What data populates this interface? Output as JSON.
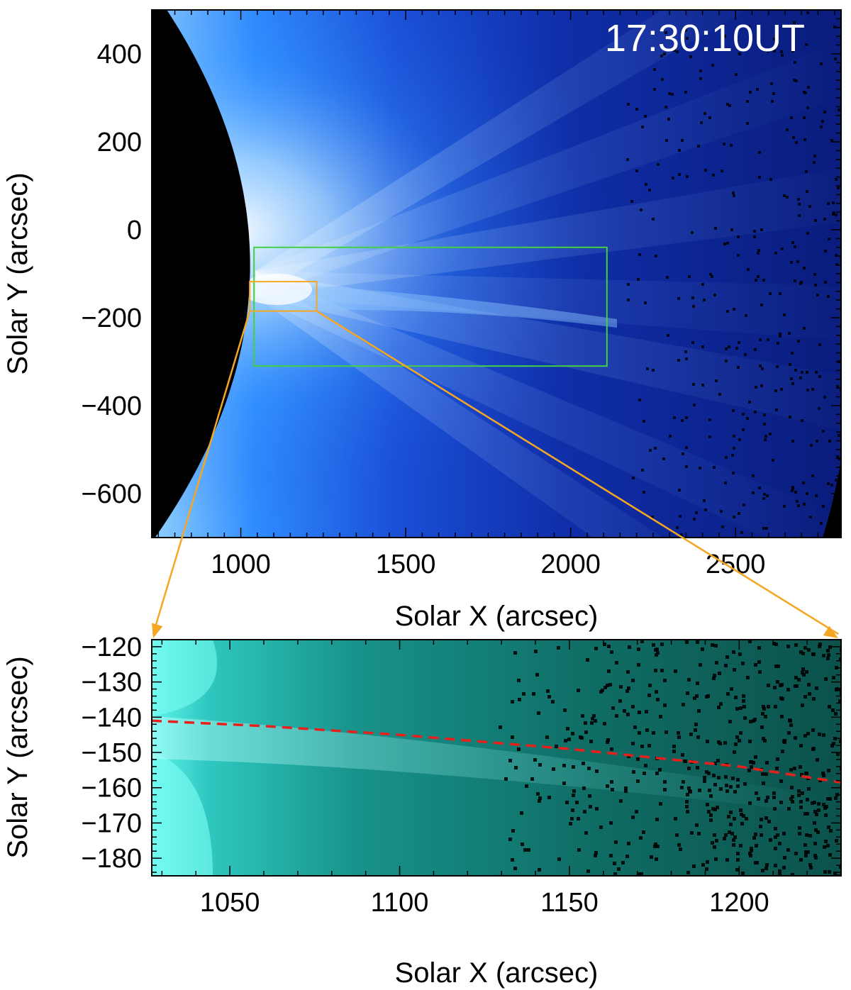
{
  "top_panel": {
    "timestamp": "17:30:10UT",
    "xlabel": "Solar X (arcsec)",
    "ylabel": "Solar Y (arcsec)",
    "x_range": [
      730,
      2820
    ],
    "y_range": [
      -700,
      500
    ],
    "x_ticks": [
      "1000",
      "1500",
      "2000",
      "2500"
    ],
    "x_tick_values": [
      1000,
      1500,
      2000,
      2500
    ],
    "y_ticks": [
      "400",
      "200",
      "0",
      "−200",
      "−400",
      "−600"
    ],
    "y_tick_values": [
      400,
      200,
      0,
      -200,
      -400,
      -600
    ],
    "green_box": {
      "x": [
        1040,
        2110
      ],
      "y": [
        -310,
        -40
      ]
    },
    "orange_box": {
      "x": [
        1027,
        1230
      ],
      "y": [
        -185,
        -118
      ]
    }
  },
  "bottom_panel": {
    "xlabel": "Solar X (arcsec)",
    "ylabel": "Solar Y (arcsec)",
    "x_range": [
      1027,
      1230
    ],
    "y_range": [
      -185,
      -118
    ],
    "x_ticks": [
      "1050",
      "1100",
      "1150",
      "1200"
    ],
    "x_tick_values": [
      1050,
      1100,
      1150,
      1200
    ],
    "y_ticks": [
      "−120",
      "−130",
      "−140",
      "−150",
      "−160",
      "−170",
      "−180"
    ],
    "y_tick_values": [
      -120,
      -130,
      -140,
      -150,
      -160,
      -170,
      -180
    ],
    "red_trace": {
      "x": [
        1027,
        1060,
        1100,
        1150,
        1200,
        1230
      ],
      "y": [
        -141,
        -142.5,
        -145,
        -149,
        -154,
        -158.5
      ]
    }
  },
  "colors": {
    "disk": "#000000",
    "top_base": "#0a1c8c",
    "bright": "#ffffff",
    "mid_blue": "#2a8cff",
    "green_box": "#44d044",
    "orange": "#f5a623",
    "bottom_base": "#0f5a52",
    "bottom_bright": "#5ff5ec",
    "trace": "#e8201c"
  }
}
